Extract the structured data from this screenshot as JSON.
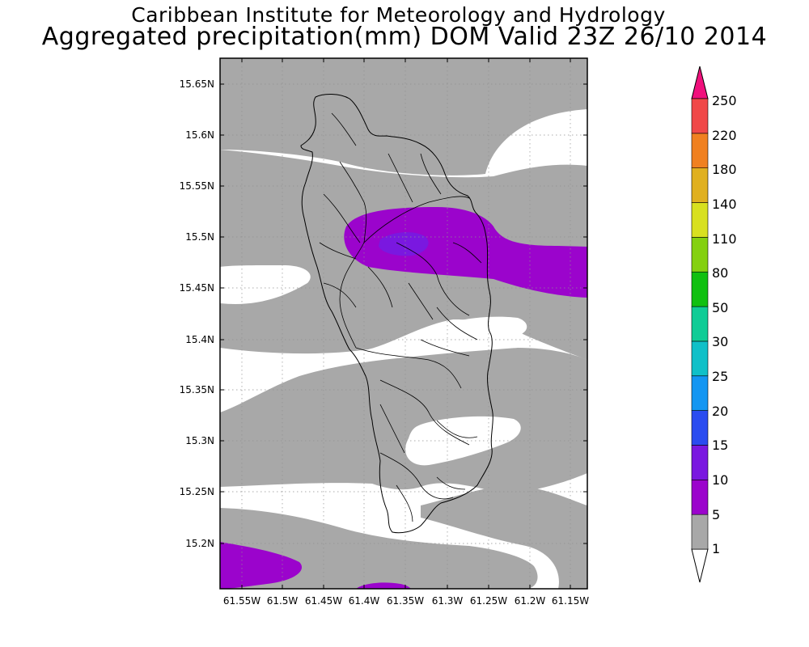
{
  "title": {
    "line1": "Caribbean Institute for Meteorology and Hydrology",
    "line2": "Aggregated precipitation(mm) DOM Valid 23Z 26/10 2014"
  },
  "map": {
    "lat_ticks": [
      "15.65N",
      "15.6N",
      "15.55N",
      "15.5N",
      "15.45N",
      "15.4N",
      "15.35N",
      "15.3N",
      "15.25N",
      "15.2N"
    ],
    "lon_ticks": [
      "61.55W",
      "61.5W",
      "61.45W",
      "61.4W",
      "61.35W",
      "61.3W",
      "61.25W",
      "61.2W",
      "61.15W"
    ],
    "colors": {
      "grey": "#a8a8a8",
      "purple": "#9b04cc",
      "violet": "#7a18e0",
      "land_outline": "#000000"
    }
  },
  "colorbar": {
    "labels": [
      "1",
      "5",
      "10",
      "15",
      "20",
      "25",
      "30",
      "50",
      "80",
      "110",
      "140",
      "180",
      "220",
      "250"
    ],
    "colors": [
      "#ffffff",
      "#a8a8a8",
      "#9b04cc",
      "#7a18e0",
      "#2a4cf0",
      "#1496f2",
      "#10c0c8",
      "#10cc96",
      "#10c010",
      "#84d010",
      "#d8e020",
      "#e0b020",
      "#f08020",
      "#f04848",
      "#f0107c"
    ]
  }
}
